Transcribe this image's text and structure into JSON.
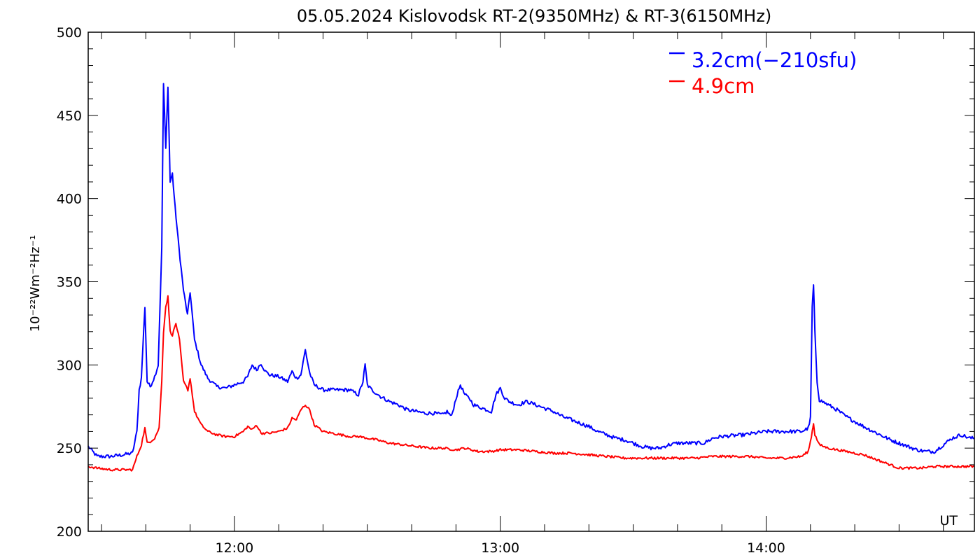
{
  "chart_data": {
    "type": "line",
    "title": "05.05.2024 Kislovodsk RT-2(9350MHz) & RT-3(6150MHz)",
    "ylabel": "10⁻²²Wm⁻²Hz⁻¹",
    "xlabel": "UT",
    "x_unit": "minutes after 11:00 UT",
    "xlim": [
      27,
      227
    ],
    "ylim": [
      200,
      500
    ],
    "y_ticks": [
      200,
      250,
      300,
      350,
      400,
      450,
      500
    ],
    "y_tick_labels": [
      "200",
      "250",
      "300",
      "350",
      "400",
      "450",
      "500"
    ],
    "x_ticks": [
      60,
      120,
      180
    ],
    "x_tick_labels": [
      "12:00",
      "13:00",
      "14:00"
    ],
    "grid": false,
    "legend_position": "top-right",
    "series": [
      {
        "name": "3.2cm(−210sfu)",
        "color": "#0000ff",
        "points": [
          [
            27,
            251
          ],
          [
            29,
            245
          ],
          [
            32,
            245
          ],
          [
            35,
            246
          ],
          [
            37,
            247
          ],
          [
            38,
            260
          ],
          [
            38.5,
            285
          ],
          [
            39,
            292
          ],
          [
            39.8,
            335
          ],
          [
            40.3,
            290
          ],
          [
            41,
            287
          ],
          [
            42,
            293
          ],
          [
            42.8,
            300
          ],
          [
            43.6,
            370
          ],
          [
            44,
            469
          ],
          [
            44.5,
            430
          ],
          [
            45,
            468
          ],
          [
            45.5,
            410
          ],
          [
            46,
            415
          ],
          [
            46.6,
            395
          ],
          [
            47.5,
            370
          ],
          [
            48.5,
            345
          ],
          [
            49.4,
            330
          ],
          [
            50,
            344
          ],
          [
            51,
            315
          ],
          [
            52.5,
            300
          ],
          [
            54,
            292
          ],
          [
            56,
            287
          ],
          [
            58,
            286
          ],
          [
            60,
            288
          ],
          [
            62,
            290
          ],
          [
            63,
            293
          ],
          [
            64,
            300
          ],
          [
            65,
            297
          ],
          [
            66,
            301
          ],
          [
            67,
            296
          ],
          [
            68,
            294
          ],
          [
            70,
            293
          ],
          [
            72,
            290
          ],
          [
            73,
            296
          ],
          [
            74,
            292
          ],
          [
            75,
            294
          ],
          [
            76,
            309
          ],
          [
            77,
            295
          ],
          [
            78,
            288
          ],
          [
            80,
            285
          ],
          [
            82,
            285
          ],
          [
            84,
            285
          ],
          [
            86,
            285
          ],
          [
            88,
            282
          ],
          [
            89,
            290
          ],
          [
            89.5,
            300
          ],
          [
            90,
            288
          ],
          [
            91,
            285
          ],
          [
            93,
            281
          ],
          [
            95,
            278
          ],
          [
            97,
            276
          ],
          [
            99,
            273
          ],
          [
            101,
            272
          ],
          [
            103,
            271
          ],
          [
            105,
            271
          ],
          [
            107,
            270
          ],
          [
            108,
            272
          ],
          [
            109,
            269
          ],
          [
            110,
            280
          ],
          [
            111,
            288
          ],
          [
            112,
            282
          ],
          [
            113,
            280
          ],
          [
            114,
            276
          ],
          [
            116,
            274
          ],
          [
            118,
            272
          ],
          [
            119,
            282
          ],
          [
            120,
            286
          ],
          [
            121,
            280
          ],
          [
            122,
            278
          ],
          [
            124,
            276
          ],
          [
            126,
            278
          ],
          [
            128,
            276
          ],
          [
            130,
            274
          ],
          [
            132,
            272
          ],
          [
            134,
            269
          ],
          [
            136,
            267
          ],
          [
            138,
            265
          ],
          [
            140,
            263
          ],
          [
            142,
            260
          ],
          [
            144,
            258
          ],
          [
            146,
            256
          ],
          [
            148,
            255
          ],
          [
            150,
            253
          ],
          [
            152,
            251
          ],
          [
            154,
            250
          ],
          [
            156,
            250
          ],
          [
            158,
            252
          ],
          [
            160,
            253
          ],
          [
            162,
            253
          ],
          [
            164,
            253
          ],
          [
            166,
            253
          ],
          [
            168,
            256
          ],
          [
            170,
            257
          ],
          [
            175,
            258
          ],
          [
            180,
            260
          ],
          [
            183,
            260
          ],
          [
            186,
            260
          ],
          [
            188,
            260
          ],
          [
            189.5,
            262
          ],
          [
            190,
            268
          ],
          [
            190.4,
            335
          ],
          [
            190.7,
            348
          ],
          [
            191,
            320
          ],
          [
            191.5,
            290
          ],
          [
            192,
            279
          ],
          [
            194,
            276
          ],
          [
            196,
            273
          ],
          [
            198,
            269
          ],
          [
            200,
            266
          ],
          [
            202,
            263
          ],
          [
            205,
            259
          ],
          [
            208,
            255
          ],
          [
            211,
            252
          ],
          [
            214,
            249
          ],
          [
            216,
            248
          ],
          [
            218,
            248
          ],
          [
            220,
            252
          ],
          [
            222,
            256
          ],
          [
            224,
            258
          ],
          [
            226,
            256
          ],
          [
            227,
            256
          ]
        ]
      },
      {
        "name": "4.9cm",
        "color": "#ff0000",
        "points": [
          [
            27,
            239
          ],
          [
            29,
            238
          ],
          [
            32,
            237
          ],
          [
            35,
            237
          ],
          [
            37,
            237
          ],
          [
            38,
            245
          ],
          [
            39,
            252
          ],
          [
            39.8,
            262
          ],
          [
            40.3,
            253
          ],
          [
            41,
            254
          ],
          [
            42,
            256
          ],
          [
            43,
            262
          ],
          [
            43.6,
            290
          ],
          [
            44,
            320
          ],
          [
            44.5,
            335
          ],
          [
            45,
            341
          ],
          [
            45.5,
            320
          ],
          [
            46,
            318
          ],
          [
            46.8,
            325
          ],
          [
            47.6,
            315
          ],
          [
            48.5,
            290
          ],
          [
            49.5,
            285
          ],
          [
            50,
            292
          ],
          [
            51,
            272
          ],
          [
            52.5,
            264
          ],
          [
            54,
            260
          ],
          [
            56,
            258
          ],
          [
            58,
            257
          ],
          [
            60,
            257
          ],
          [
            62,
            260
          ],
          [
            63,
            263
          ],
          [
            64,
            261
          ],
          [
            65,
            264
          ],
          [
            66,
            259
          ],
          [
            68,
            259
          ],
          [
            70,
            260
          ],
          [
            72,
            262
          ],
          [
            73,
            268
          ],
          [
            74,
            267
          ],
          [
            75,
            273
          ],
          [
            76,
            276
          ],
          [
            77,
            273
          ],
          [
            78,
            264
          ],
          [
            80,
            260
          ],
          [
            82,
            259
          ],
          [
            84,
            258
          ],
          [
            86,
            257
          ],
          [
            88,
            257
          ],
          [
            90,
            256
          ],
          [
            92,
            255
          ],
          [
            95,
            253
          ],
          [
            98,
            252
          ],
          [
            101,
            251
          ],
          [
            104,
            250
          ],
          [
            107,
            250
          ],
          [
            110,
            249
          ],
          [
            112,
            250
          ],
          [
            115,
            248
          ],
          [
            118,
            248
          ],
          [
            120,
            249
          ],
          [
            124,
            249
          ],
          [
            128,
            248
          ],
          [
            132,
            247
          ],
          [
            136,
            247
          ],
          [
            140,
            246
          ],
          [
            144,
            245
          ],
          [
            148,
            244
          ],
          [
            152,
            244
          ],
          [
            156,
            244
          ],
          [
            160,
            244
          ],
          [
            164,
            244
          ],
          [
            168,
            245
          ],
          [
            172,
            245
          ],
          [
            176,
            245
          ],
          [
            180,
            244
          ],
          [
            184,
            244
          ],
          [
            188,
            245
          ],
          [
            189.5,
            248
          ],
          [
            190,
            254
          ],
          [
            190.4,
            260
          ],
          [
            190.7,
            265
          ],
          [
            191,
            258
          ],
          [
            192,
            252
          ],
          [
            194,
            250
          ],
          [
            196,
            249
          ],
          [
            198,
            248
          ],
          [
            200,
            247
          ],
          [
            202,
            246
          ],
          [
            204,
            244
          ],
          [
            206,
            242
          ],
          [
            208,
            240
          ],
          [
            210,
            238
          ],
          [
            212,
            238
          ],
          [
            215,
            238
          ],
          [
            218,
            239
          ],
          [
            221,
            239
          ],
          [
            224,
            239
          ],
          [
            227,
            239
          ]
        ]
      }
    ]
  }
}
